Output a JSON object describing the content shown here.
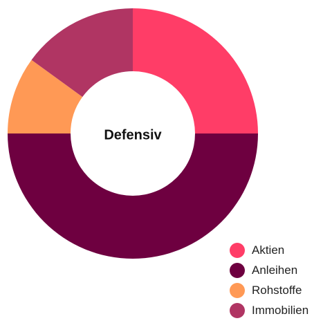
{
  "chart_data": {
    "type": "pie",
    "variant": "donut",
    "center_label": "Defensiv",
    "categories": [
      "Aktien",
      "Anleihen",
      "Rohstoffe",
      "Immobilien"
    ],
    "values": [
      25,
      50,
      10,
      15
    ],
    "colors": [
      "#ff3d67",
      "#6e0040",
      "#ff9955",
      "#b03563"
    ],
    "start_angle_deg": 0,
    "direction": "clockwise",
    "legend_position": "bottom-right"
  }
}
